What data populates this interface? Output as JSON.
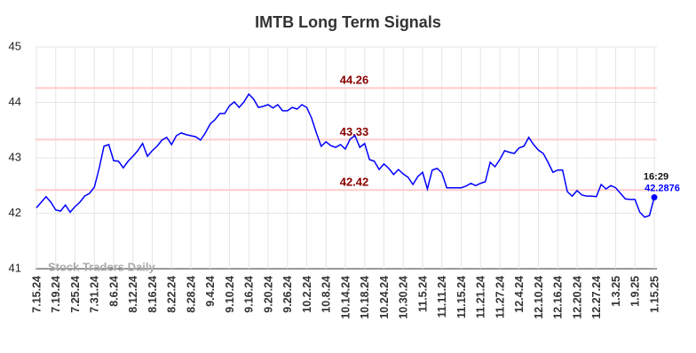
{
  "chart_data": {
    "type": "line",
    "title": "IMTB Long Term Signals",
    "watermark": "Stock Traders Daily",
    "categories": [
      "7.15.24",
      null,
      null,
      null,
      "7.19.24",
      null,
      null,
      null,
      "7.25.24",
      null,
      null,
      null,
      "7.31.24",
      null,
      null,
      null,
      "8.6.24",
      null,
      null,
      null,
      "8.12.24",
      null,
      null,
      null,
      "8.16.24",
      null,
      null,
      null,
      "8.22.24",
      null,
      null,
      null,
      "8.28.24",
      null,
      null,
      null,
      "9.4.24",
      null,
      null,
      null,
      "9.10.24",
      null,
      null,
      null,
      "9.16.24",
      null,
      null,
      null,
      "9.20.24",
      null,
      null,
      null,
      "9.26.24",
      null,
      null,
      null,
      "10.2.24",
      null,
      null,
      null,
      "10.8.24",
      null,
      null,
      null,
      "10.14.24",
      null,
      null,
      null,
      "10.18.24",
      null,
      null,
      null,
      "10.24.24",
      null,
      null,
      null,
      "10.30.24",
      null,
      null,
      null,
      "11.5.24",
      null,
      null,
      null,
      "11.11.24",
      null,
      null,
      null,
      "11.15.24",
      null,
      null,
      null,
      "11.21.24",
      null,
      null,
      null,
      "11.27.24",
      null,
      null,
      null,
      "12.4.24",
      null,
      null,
      null,
      "12.10.24",
      null,
      null,
      null,
      "12.16.24",
      null,
      null,
      null,
      "12.20.24",
      null,
      null,
      null,
      "12.27.24",
      null,
      null,
      null,
      "1.3.25",
      null,
      null,
      null,
      "1.9.25",
      null,
      null,
      null,
      "1.15.25"
    ],
    "series": [
      {
        "name": "IMTB",
        "color": "#0000ff",
        "values": [
          42.1,
          42.2,
          42.3,
          42.2,
          42.06,
          42.04,
          42.15,
          42.02,
          42.12,
          42.2,
          42.31,
          42.36,
          42.47,
          42.81,
          43.21,
          43.24,
          42.95,
          42.94,
          42.82,
          42.94,
          43.03,
          43.13,
          43.26,
          43.03,
          43.13,
          43.21,
          43.32,
          43.37,
          43.24,
          43.4,
          43.45,
          43.42,
          43.4,
          43.38,
          43.32,
          43.45,
          43.61,
          43.69,
          43.8,
          43.8,
          43.94,
          44.01,
          43.91,
          44.01,
          44.15,
          44.06,
          43.91,
          43.93,
          43.96,
          43.9,
          43.96,
          43.85,
          43.85,
          43.91,
          43.88,
          43.96,
          43.91,
          43.72,
          43.45,
          43.21,
          43.29,
          43.22,
          43.19,
          43.24,
          43.16,
          43.34,
          43.4,
          43.19,
          43.26,
          42.97,
          42.94,
          42.79,
          42.89,
          42.81,
          42.7,
          42.79,
          42.71,
          42.65,
          42.52,
          42.66,
          42.74,
          42.44,
          42.78,
          42.81,
          42.73,
          42.46,
          42.46,
          42.46,
          42.46,
          42.49,
          42.54,
          42.5,
          42.54,
          42.57,
          42.92,
          42.84,
          42.97,
          43.13,
          43.1,
          43.08,
          43.18,
          43.21,
          43.37,
          43.24,
          43.14,
          43.08,
          42.92,
          42.74,
          42.78,
          42.78,
          42.39,
          42.31,
          42.41,
          42.33,
          42.31,
          42.31,
          42.3,
          42.52,
          42.44,
          42.5,
          42.46,
          42.36,
          42.26,
          42.25,
          42.25,
          42.02,
          41.93,
          41.96,
          42.2876
        ]
      }
    ],
    "last_time": "16:29",
    "signal_lines": [
      44.26,
      43.33,
      42.42
    ],
    "signal_line_color": "#ffcccc",
    "signal_label_color": "#8b0000",
    "ylim": [
      41,
      45
    ],
    "yticks": [
      41,
      42,
      43,
      44,
      45
    ],
    "grid": true
  }
}
